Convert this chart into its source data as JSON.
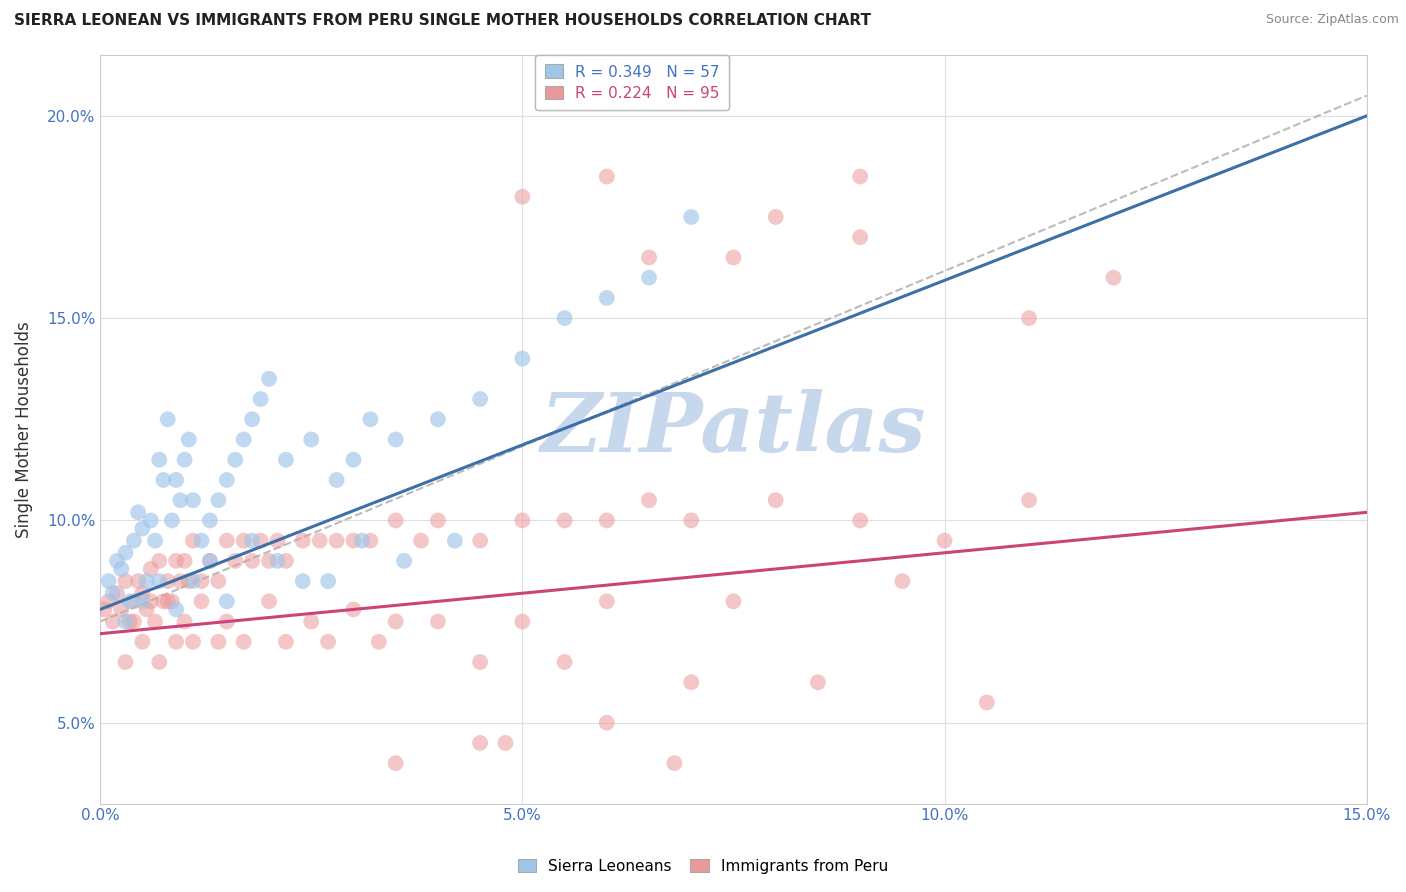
{
  "title": "SIERRA LEONEAN VS IMMIGRANTS FROM PERU SINGLE MOTHER HOUSEHOLDS CORRELATION CHART",
  "source": "Source: ZipAtlas.com",
  "ylabel": "Single Mother Households",
  "xlim": [
    0.0,
    15.0
  ],
  "ylim": [
    3.0,
    21.5
  ],
  "legend1_label": "R = 0.349   N = 57",
  "legend2_label": "R = 0.224   N = 95",
  "legend_label1": "Sierra Leoneans",
  "legend_label2": "Immigrants from Peru",
  "blue_color": "#9fc5e8",
  "pink_color": "#ea9999",
  "blue_line_color": "#3d6fa8",
  "pink_line_color": "#cc4477",
  "dashed_line_color": "#aaaaaa",
  "watermark_text": "ZIPatlas",
  "watermark_color": "#c8d8ec",
  "background_color": "#ffffff",
  "grid_color": "#e0e0e0",
  "tick_color": "#4472c4",
  "title_color": "#222222",
  "source_color": "#888888",
  "blue_reg_x0": 0.0,
  "blue_reg_y0": 7.8,
  "blue_reg_x1": 15.0,
  "blue_reg_y1": 20.0,
  "pink_reg_x0": 0.0,
  "pink_reg_y0": 7.2,
  "pink_reg_x1": 15.0,
  "pink_reg_y1": 10.2,
  "dash_x0": 0.0,
  "dash_y0": 7.5,
  "dash_x1": 15.0,
  "dash_y1": 20.5,
  "blue_x": [
    0.1,
    0.15,
    0.2,
    0.25,
    0.3,
    0.35,
    0.4,
    0.45,
    0.5,
    0.55,
    0.6,
    0.65,
    0.7,
    0.75,
    0.8,
    0.85,
    0.9,
    0.95,
    1.0,
    1.05,
    1.1,
    1.2,
    1.3,
    1.4,
    1.5,
    1.6,
    1.7,
    1.8,
    1.9,
    2.0,
    2.2,
    2.5,
    2.8,
    3.0,
    3.2,
    3.5,
    4.0,
    4.5,
    5.0,
    5.5,
    6.0,
    6.5,
    7.0,
    0.3,
    0.5,
    0.7,
    0.9,
    1.1,
    1.3,
    1.5,
    1.8,
    2.1,
    2.4,
    2.7,
    3.1,
    3.6,
    4.2
  ],
  "blue_y": [
    8.5,
    8.2,
    9.0,
    8.8,
    9.2,
    8.0,
    9.5,
    10.2,
    9.8,
    8.5,
    10.0,
    9.5,
    11.5,
    11.0,
    12.5,
    10.0,
    11.0,
    10.5,
    11.5,
    12.0,
    10.5,
    9.5,
    10.0,
    10.5,
    11.0,
    11.5,
    12.0,
    12.5,
    13.0,
    13.5,
    11.5,
    12.0,
    11.0,
    11.5,
    12.5,
    12.0,
    12.5,
    13.0,
    14.0,
    15.0,
    15.5,
    16.0,
    17.5,
    7.5,
    8.0,
    8.5,
    7.8,
    8.5,
    9.0,
    8.0,
    9.5,
    9.0,
    8.5,
    8.5,
    9.5,
    9.0,
    9.5
  ],
  "pink_x": [
    0.05,
    0.1,
    0.15,
    0.2,
    0.25,
    0.3,
    0.35,
    0.4,
    0.45,
    0.5,
    0.55,
    0.6,
    0.65,
    0.7,
    0.75,
    0.8,
    0.85,
    0.9,
    0.95,
    1.0,
    1.05,
    1.1,
    1.2,
    1.3,
    1.4,
    1.5,
    1.6,
    1.7,
    1.8,
    1.9,
    2.0,
    2.1,
    2.2,
    2.4,
    2.6,
    2.8,
    3.0,
    3.2,
    3.5,
    3.8,
    4.0,
    4.5,
    5.0,
    5.5,
    6.0,
    6.5,
    7.0,
    8.0,
    9.0,
    10.0,
    11.0,
    0.4,
    0.6,
    0.8,
    1.0,
    1.2,
    1.5,
    2.0,
    2.5,
    3.0,
    3.5,
    4.0,
    5.0,
    6.0,
    7.5,
    9.5,
    0.3,
    0.5,
    0.7,
    0.9,
    1.1,
    1.4,
    1.7,
    2.2,
    2.7,
    3.3,
    4.5,
    5.5,
    7.0,
    8.5,
    10.5,
    5.0,
    6.0,
    7.5,
    9.0,
    12.0,
    6.5,
    8.0,
    9.0,
    11.0,
    4.5,
    6.8,
    3.5,
    4.8,
    6.0
  ],
  "pink_y": [
    7.8,
    8.0,
    7.5,
    8.2,
    7.8,
    8.5,
    7.5,
    8.0,
    8.5,
    8.2,
    7.8,
    8.8,
    7.5,
    9.0,
    8.0,
    8.5,
    8.0,
    9.0,
    8.5,
    9.0,
    8.5,
    9.5,
    8.5,
    9.0,
    8.5,
    9.5,
    9.0,
    9.5,
    9.0,
    9.5,
    9.0,
    9.5,
    9.0,
    9.5,
    9.5,
    9.5,
    9.5,
    9.5,
    10.0,
    9.5,
    10.0,
    9.5,
    10.0,
    10.0,
    10.0,
    10.5,
    10.0,
    10.5,
    10.0,
    9.5,
    10.5,
    7.5,
    8.0,
    8.0,
    7.5,
    8.0,
    7.5,
    8.0,
    7.5,
    7.8,
    7.5,
    7.5,
    7.5,
    8.0,
    8.0,
    8.5,
    6.5,
    7.0,
    6.5,
    7.0,
    7.0,
    7.0,
    7.0,
    7.0,
    7.0,
    7.0,
    6.5,
    6.5,
    6.0,
    6.0,
    5.5,
    18.0,
    18.5,
    16.5,
    17.0,
    16.0,
    16.5,
    17.5,
    18.5,
    15.0,
    4.5,
    4.0,
    4.0,
    4.5,
    5.0
  ]
}
